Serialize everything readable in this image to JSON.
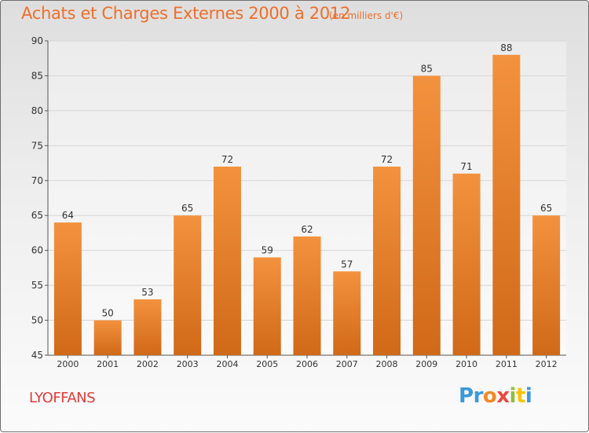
{
  "chart_data": {
    "type": "bar",
    "title": "Achats et Charges Externes 2000 à 2012",
    "subtitle": "(en milliers d'€)",
    "categories": [
      "2000",
      "2001",
      "2002",
      "2003",
      "2004",
      "2005",
      "2006",
      "2007",
      "2008",
      "2009",
      "2010",
      "2011",
      "2012"
    ],
    "values": [
      64,
      50,
      53,
      65,
      72,
      59,
      62,
      57,
      72,
      85,
      71,
      88,
      65
    ],
    "ylim": [
      45,
      90
    ],
    "yticks": [
      45,
      50,
      55,
      60,
      65,
      70,
      75,
      80,
      85,
      90
    ],
    "grid": true,
    "bar_color": "#f3923e",
    "bar_color_dark": "#d06918"
  },
  "commune": "LYOFFANS",
  "logo": {
    "text": "Proxiti",
    "letter_colors": [
      "#3a9ad9",
      "#3a9ad9",
      "#f08a24",
      "#e94a3f",
      "#8fbf3f",
      "#f5c400",
      "#3a9ad9"
    ]
  },
  "colors": {
    "title": "#ef6e2a",
    "commune": "#e23a3a"
  }
}
